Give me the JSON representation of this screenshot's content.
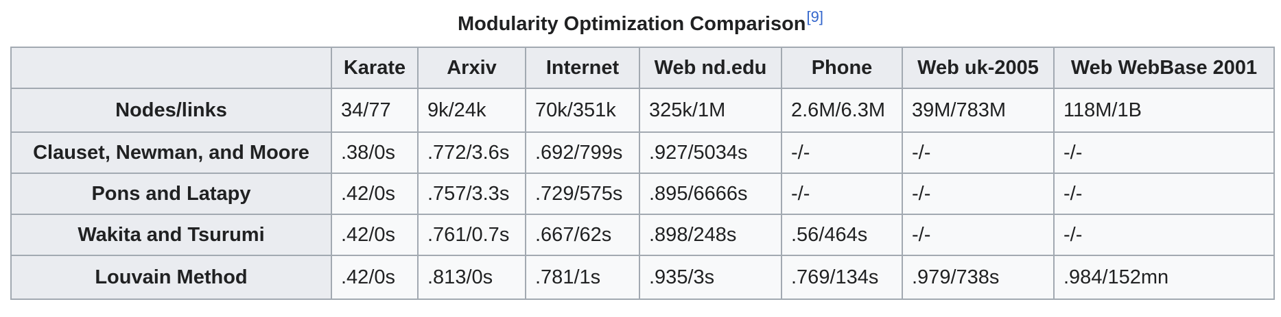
{
  "caption": {
    "title": "Modularity Optimization Comparison",
    "reference": "[9]"
  },
  "table": {
    "columns": [
      "Karate",
      "Arxiv",
      "Internet",
      "Web nd.edu",
      "Phone",
      "Web uk-2005",
      "Web WebBase 2001"
    ],
    "rows": [
      {
        "label": "Nodes/links",
        "cells": [
          "34/77",
          "9k/24k",
          "70k/351k",
          "325k/1M",
          "2.6M/6.3M",
          "39M/783M",
          "118M/1B"
        ]
      },
      {
        "label": "Clauset, Newman, and Moore",
        "cells": [
          ".38/0s",
          ".772/3.6s",
          ".692/799s",
          ".927/5034s",
          "-/-",
          "-/-",
          "-/-"
        ]
      },
      {
        "label": "Pons and Latapy",
        "cells": [
          ".42/0s",
          ".757/3.3s",
          ".729/575s",
          ".895/6666s",
          "-/-",
          "-/-",
          "-/-"
        ]
      },
      {
        "label": "Wakita and Tsurumi",
        "cells": [
          ".42/0s",
          ".761/0.7s",
          ".667/62s",
          ".898/248s",
          ".56/464s",
          "-/-",
          "-/-"
        ]
      },
      {
        "label": "Louvain Method",
        "cells": [
          ".42/0s",
          ".813/0s",
          ".781/1s",
          ".935/3s",
          ".769/134s",
          ".979/738s",
          ".984/152mn"
        ]
      }
    ]
  }
}
